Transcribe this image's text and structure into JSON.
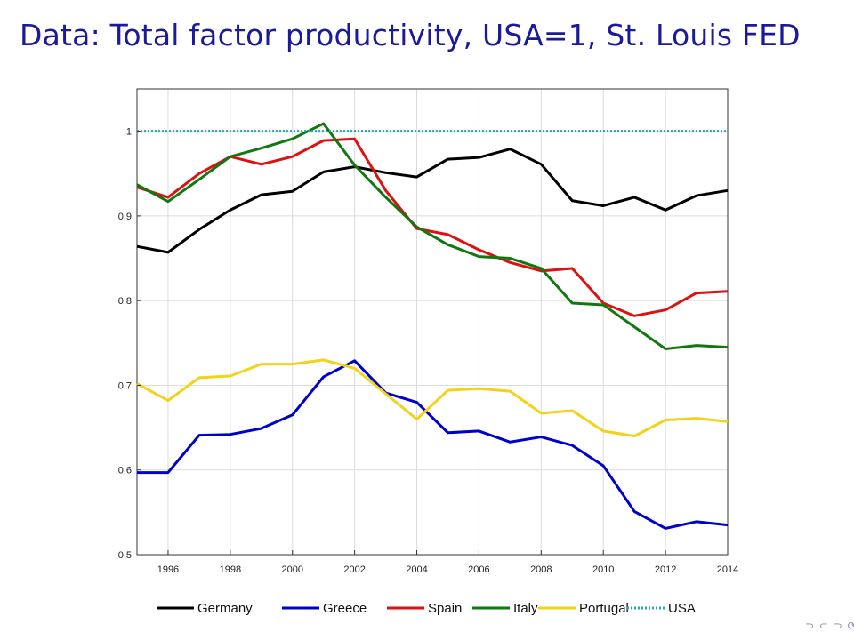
{
  "slide": {
    "title": "Data: Total factor productivity, USA=1, St. Louis FED",
    "nav_symbols": "⊃ ⊂ ⊃ ⟳"
  },
  "chart_data": {
    "type": "line",
    "title": "",
    "xlabel": "",
    "ylabel": "",
    "xlim": [
      1995,
      2014
    ],
    "ylim": [
      0.5,
      1.05
    ],
    "xticks": [
      1996,
      1998,
      2000,
      2002,
      2004,
      2006,
      2008,
      2010,
      2012,
      2014
    ],
    "yticks": [
      0.5,
      0.6,
      0.7,
      0.8,
      0.9,
      1
    ],
    "grid": true,
    "legend_placement": "bottom",
    "x": [
      1995,
      1996,
      1997,
      1998,
      1999,
      2000,
      2001,
      2002,
      2003,
      2004,
      2005,
      2006,
      2007,
      2008,
      2009,
      2010,
      2011,
      2012,
      2013,
      2014
    ],
    "series": [
      {
        "name": "Germany",
        "color": "#000000",
        "style": "solid",
        "values": [
          0.864,
          0.857,
          0.884,
          0.907,
          0.925,
          0.929,
          0.952,
          0.958,
          0.951,
          0.946,
          0.967,
          0.969,
          0.979,
          0.961,
          0.918,
          0.912,
          0.922,
          0.907,
          0.924,
          0.93
        ]
      },
      {
        "name": "Greece",
        "color": "#0000cc",
        "style": "solid",
        "values": [
          0.597,
          0.597,
          0.641,
          0.642,
          0.649,
          0.665,
          0.71,
          0.729,
          0.691,
          0.68,
          0.644,
          0.646,
          0.633,
          0.639,
          0.629,
          0.605,
          0.551,
          0.531,
          0.539,
          0.535
        ]
      },
      {
        "name": "Spain",
        "color": "#dd1111",
        "style": "solid",
        "values": [
          0.934,
          0.922,
          0.95,
          0.97,
          0.961,
          0.97,
          0.989,
          0.991,
          0.93,
          0.885,
          0.878,
          0.86,
          0.845,
          0.835,
          0.838,
          0.797,
          0.782,
          0.789,
          0.809,
          0.811
        ]
      },
      {
        "name": "Italy",
        "color": "#117711",
        "style": "solid",
        "values": [
          0.937,
          0.917,
          0.943,
          0.97,
          0.98,
          0.991,
          1.009,
          0.96,
          0.922,
          0.887,
          0.866,
          0.852,
          0.85,
          0.838,
          0.797,
          0.795,
          0.769,
          0.743,
          0.747,
          0.745
        ]
      },
      {
        "name": "Portugal",
        "color": "#f2d21a",
        "style": "solid",
        "values": [
          0.702,
          0.682,
          0.709,
          0.711,
          0.725,
          0.725,
          0.73,
          0.72,
          0.69,
          0.66,
          0.694,
          0.696,
          0.693,
          0.667,
          0.67,
          0.646,
          0.64,
          0.659,
          0.661,
          0.657
        ]
      },
      {
        "name": "USA",
        "color": "#1aaeb0",
        "style": "dotted",
        "values": [
          1,
          1,
          1,
          1,
          1,
          1,
          1,
          1,
          1,
          1,
          1,
          1,
          1,
          1,
          1,
          1,
          1,
          1,
          1,
          1
        ]
      }
    ]
  }
}
